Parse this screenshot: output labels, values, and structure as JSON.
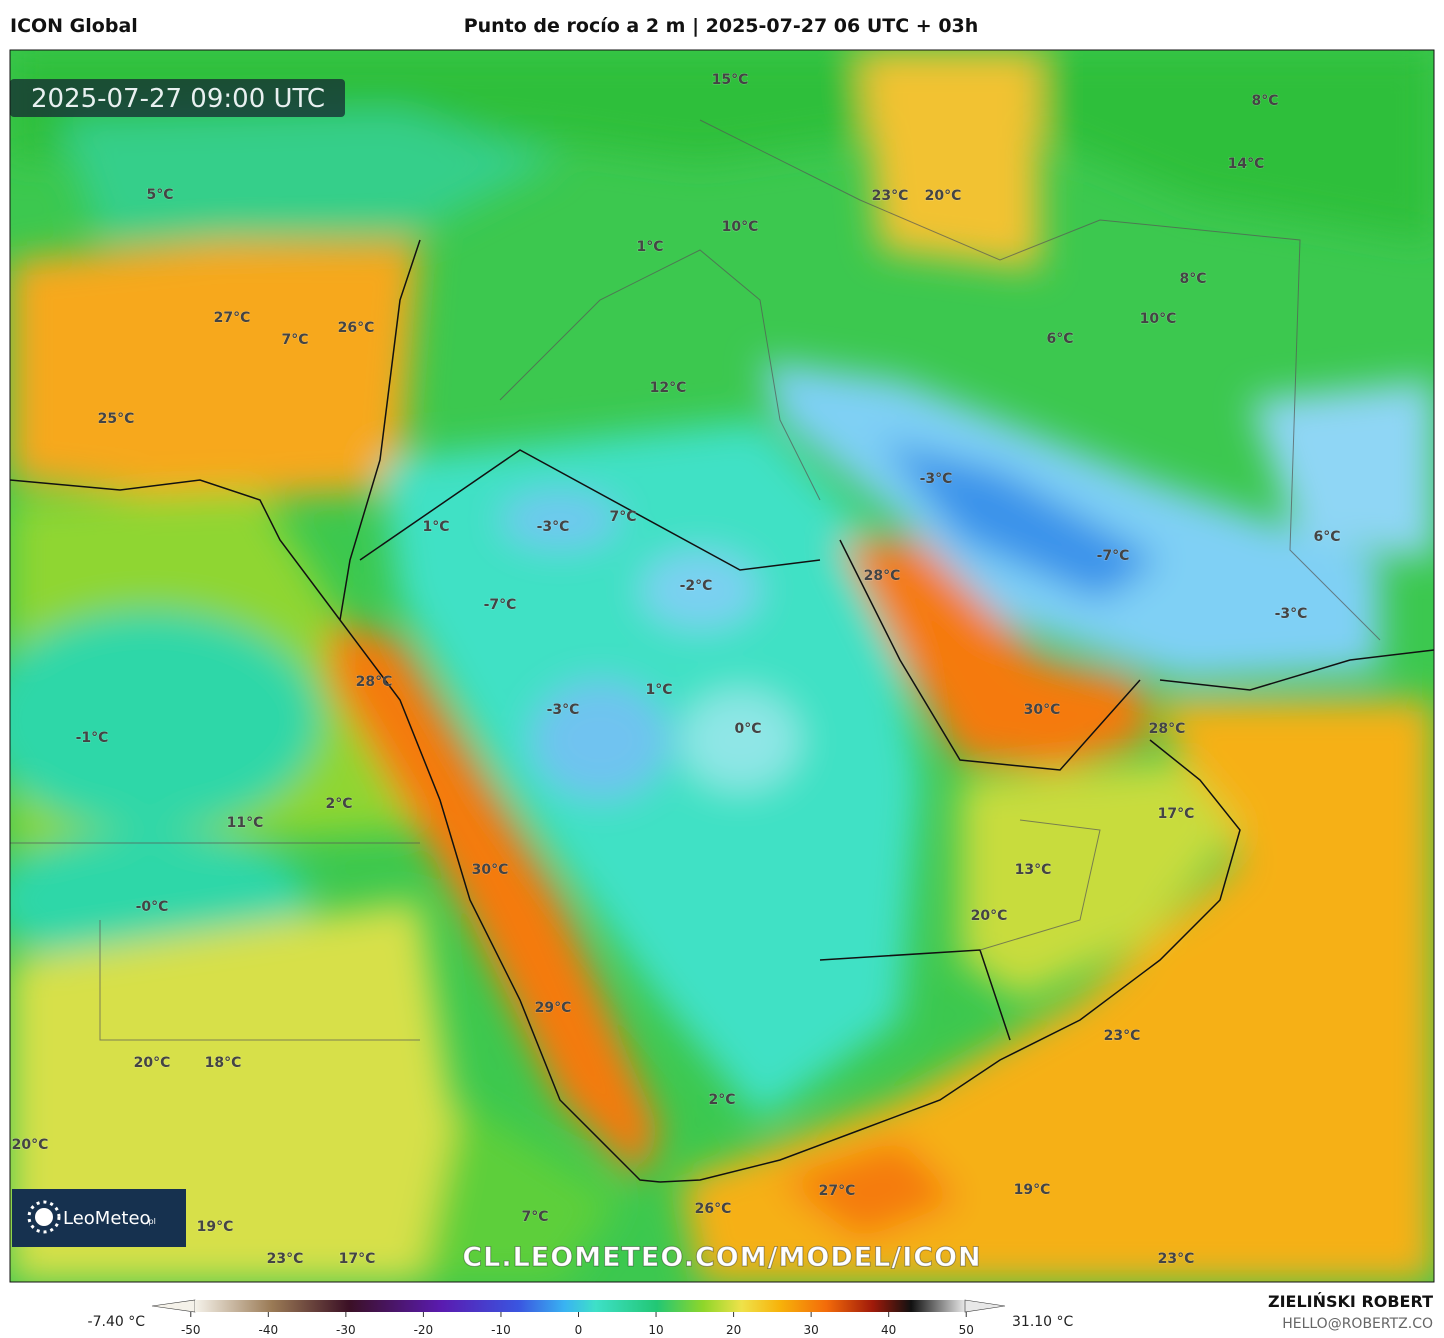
{
  "header": {
    "model": "ICON Global",
    "title": "Punto de rocío a 2 m | 2025-07-27 06 UTC + 03h"
  },
  "map": {
    "timestamp": "2025-07-27 09:00 UTC",
    "watermark": "CL.LEOMETEO.COM/MODEL/ICON",
    "logo": "LeoMeteo",
    "logo_suffix": ".pl",
    "labels": [
      "15°C",
      "8°C",
      "14°C",
      "23°C",
      "20°C",
      "5°C",
      "10°C",
      "1°C",
      "8°C",
      "27°C",
      "7°C",
      "26°C",
      "10°C",
      "6°C",
      "12°C",
      "25°C",
      "-3°C",
      "1°C",
      "-3°C",
      "7°C",
      "6°C",
      "-7°C",
      "28°C",
      "-2°C",
      "-7°C",
      "-3°C",
      "28°C",
      "1°C",
      "30°C",
      "-3°C",
      "0°C",
      "28°C",
      "-1°C",
      "2°C",
      "17°C",
      "11°C",
      "30°C",
      "13°C",
      "-0°C",
      "20°C",
      "29°C",
      "23°C",
      "20°C",
      "18°C",
      "2°C",
      "20°C",
      "27°C",
      "19°C",
      "26°C",
      "7°C",
      "19°C",
      "23°C",
      "17°C",
      "23°C"
    ]
  },
  "colorbar": {
    "min_label": "-7.40 °C",
    "max_label": "31.10 °C",
    "range": [
      -55,
      55
    ],
    "ticks": [
      -50,
      -40,
      -30,
      -20,
      -10,
      0,
      10,
      20,
      30,
      40,
      50
    ]
  },
  "footer": {
    "author": "ZIELIŃSKI ROBERT",
    "email": "HELLO@ROBERTZ.CO"
  }
}
